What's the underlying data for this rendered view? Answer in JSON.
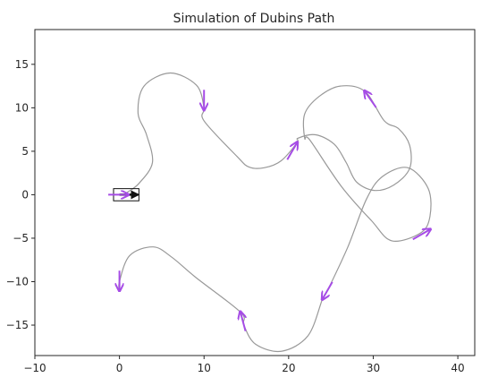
{
  "chart_data": {
    "type": "line",
    "title": "Simulation of Dubins Path",
    "xlabel": "",
    "ylabel": "",
    "xlim": [
      -10,
      42
    ],
    "ylim": [
      -18.5,
      19
    ],
    "xticks": [
      -10,
      0,
      10,
      20,
      30,
      40
    ],
    "yticks": [
      -15,
      -10,
      -5,
      0,
      5,
      10,
      15
    ],
    "grid": false,
    "colors": {
      "path": "#999999",
      "arrow": "#a64ce6",
      "vehicle": "#111111",
      "axis": "#262626"
    },
    "path": [
      [
        0.8,
        0.2
      ],
      [
        2.3,
        1.3
      ],
      [
        3.9,
        3.7
      ],
      [
        3.2,
        6.9
      ],
      [
        2.2,
        9.4
      ],
      [
        2.9,
        12.5
      ],
      [
        6.0,
        14.0
      ],
      [
        9.1,
        12.6
      ],
      [
        10.0,
        10.0
      ],
      [
        10.0,
        8.5
      ],
      [
        13.9,
        4.4
      ],
      [
        15.3,
        3.2
      ],
      [
        17.1,
        3.1
      ],
      [
        19.1,
        3.9
      ],
      [
        21.0,
        6.0
      ],
      [
        21.1,
        6.5
      ],
      [
        23.2,
        6.9
      ],
      [
        25.4,
        5.8
      ],
      [
        26.8,
        3.7
      ],
      [
        28.0,
        1.5
      ],
      [
        30.1,
        0.5
      ],
      [
        32.4,
        1.1
      ],
      [
        34.3,
        3.0
      ],
      [
        34.3,
        5.7
      ],
      [
        33.0,
        7.6
      ],
      [
        31.3,
        8.5
      ],
      [
        29.0,
        11.9
      ],
      [
        26.1,
        12.5
      ],
      [
        23.6,
        11.3
      ],
      [
        21.9,
        9.3
      ],
      [
        21.9,
        6.5
      ],
      [
        22.5,
        6.3
      ],
      [
        26.2,
        1.0
      ],
      [
        29.8,
        -3.0
      ],
      [
        32.2,
        -5.3
      ],
      [
        35.6,
        -4.4
      ],
      [
        36.7,
        -2.5
      ],
      [
        36.5,
        0.7
      ],
      [
        34.1,
        3.1
      ],
      [
        31.1,
        2.1
      ],
      [
        29.2,
        -0.5
      ],
      [
        27.0,
        -6.0
      ],
      [
        24.6,
        -11.0
      ],
      [
        24.0,
        -12.0
      ],
      [
        22.3,
        -16.2
      ],
      [
        19.2,
        -18.0
      ],
      [
        16.1,
        -17.2
      ],
      [
        14.7,
        -15.0
      ],
      [
        14.3,
        -13.5
      ],
      [
        9.0,
        -9.5
      ],
      [
        6.2,
        -7.2
      ],
      [
        4.0,
        -6.0
      ],
      [
        1.2,
        -7.0
      ],
      [
        0.0,
        -10.0
      ],
      [
        0.0,
        -11.0
      ]
    ],
    "arrows": [
      {
        "x": 0.0,
        "y": -11.0,
        "heading_deg": 270
      },
      {
        "x": 14.3,
        "y": -13.5,
        "heading_deg": 105
      },
      {
        "x": 24.0,
        "y": -12.0,
        "heading_deg": 240
      },
      {
        "x": 36.7,
        "y": -4.0,
        "heading_deg": 30
      },
      {
        "x": 29.0,
        "y": 11.9,
        "heading_deg": 125
      },
      {
        "x": 21.0,
        "y": 6.0,
        "heading_deg": 60
      },
      {
        "x": 10.0,
        "y": 9.8,
        "heading_deg": 270
      },
      {
        "x": 1.0,
        "y": 0.0,
        "heading_deg": 0
      }
    ],
    "vehicle": {
      "x": 0.8,
      "y": 0.0,
      "length": 3.0,
      "width": 1.4,
      "heading_deg": 0
    }
  }
}
